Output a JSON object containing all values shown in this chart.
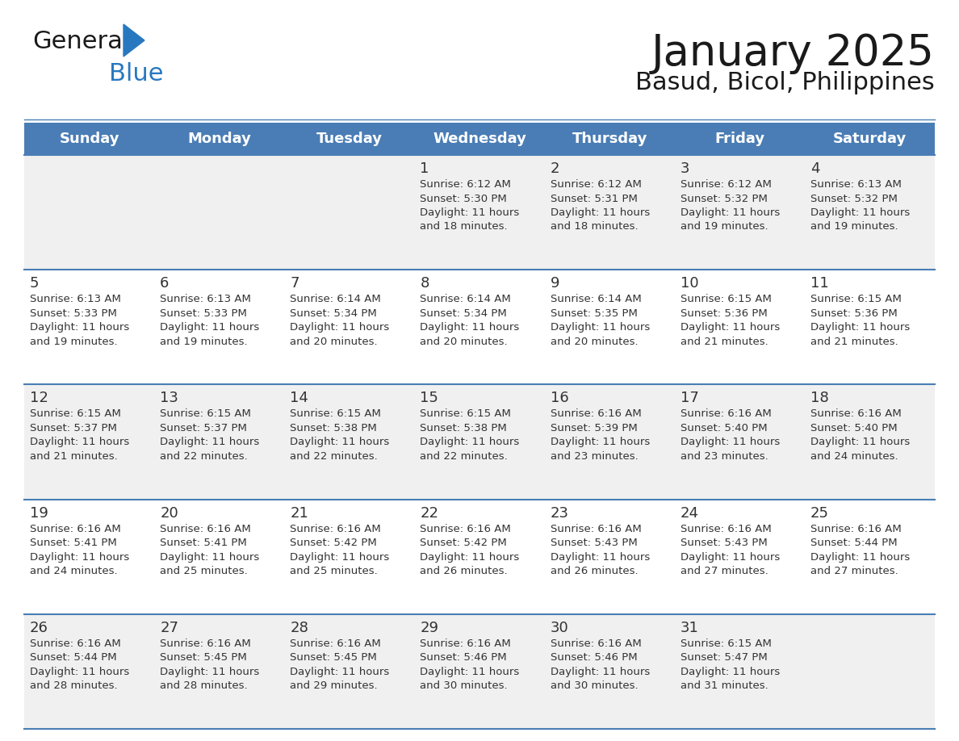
{
  "title": "January 2025",
  "subtitle": "Basud, Bicol, Philippines",
  "header_color": "#4a7db5",
  "header_text_color": "#ffffff",
  "cell_bg_odd": "#f0f0f0",
  "cell_bg_even": "#ffffff",
  "day_headers": [
    "Sunday",
    "Monday",
    "Tuesday",
    "Wednesday",
    "Thursday",
    "Friday",
    "Saturday"
  ],
  "title_color": "#1a1a1a",
  "subtitle_color": "#1a1a1a",
  "text_color": "#333333",
  "logo_general_color": "#1a1a1a",
  "logo_blue_color": "#2878c0",
  "divider_color": "#4a7db5",
  "calendar_data": [
    [
      "",
      "",
      "",
      "1\nSunrise: 6:12 AM\nSunset: 5:30 PM\nDaylight: 11 hours\nand 18 minutes.",
      "2\nSunrise: 6:12 AM\nSunset: 5:31 PM\nDaylight: 11 hours\nand 18 minutes.",
      "3\nSunrise: 6:12 AM\nSunset: 5:32 PM\nDaylight: 11 hours\nand 19 minutes.",
      "4\nSunrise: 6:13 AM\nSunset: 5:32 PM\nDaylight: 11 hours\nand 19 minutes."
    ],
    [
      "5\nSunrise: 6:13 AM\nSunset: 5:33 PM\nDaylight: 11 hours\nand 19 minutes.",
      "6\nSunrise: 6:13 AM\nSunset: 5:33 PM\nDaylight: 11 hours\nand 19 minutes.",
      "7\nSunrise: 6:14 AM\nSunset: 5:34 PM\nDaylight: 11 hours\nand 20 minutes.",
      "8\nSunrise: 6:14 AM\nSunset: 5:34 PM\nDaylight: 11 hours\nand 20 minutes.",
      "9\nSunrise: 6:14 AM\nSunset: 5:35 PM\nDaylight: 11 hours\nand 20 minutes.",
      "10\nSunrise: 6:15 AM\nSunset: 5:36 PM\nDaylight: 11 hours\nand 21 minutes.",
      "11\nSunrise: 6:15 AM\nSunset: 5:36 PM\nDaylight: 11 hours\nand 21 minutes."
    ],
    [
      "12\nSunrise: 6:15 AM\nSunset: 5:37 PM\nDaylight: 11 hours\nand 21 minutes.",
      "13\nSunrise: 6:15 AM\nSunset: 5:37 PM\nDaylight: 11 hours\nand 22 minutes.",
      "14\nSunrise: 6:15 AM\nSunset: 5:38 PM\nDaylight: 11 hours\nand 22 minutes.",
      "15\nSunrise: 6:15 AM\nSunset: 5:38 PM\nDaylight: 11 hours\nand 22 minutes.",
      "16\nSunrise: 6:16 AM\nSunset: 5:39 PM\nDaylight: 11 hours\nand 23 minutes.",
      "17\nSunrise: 6:16 AM\nSunset: 5:40 PM\nDaylight: 11 hours\nand 23 minutes.",
      "18\nSunrise: 6:16 AM\nSunset: 5:40 PM\nDaylight: 11 hours\nand 24 minutes."
    ],
    [
      "19\nSunrise: 6:16 AM\nSunset: 5:41 PM\nDaylight: 11 hours\nand 24 minutes.",
      "20\nSunrise: 6:16 AM\nSunset: 5:41 PM\nDaylight: 11 hours\nand 25 minutes.",
      "21\nSunrise: 6:16 AM\nSunset: 5:42 PM\nDaylight: 11 hours\nand 25 minutes.",
      "22\nSunrise: 6:16 AM\nSunset: 5:42 PM\nDaylight: 11 hours\nand 26 minutes.",
      "23\nSunrise: 6:16 AM\nSunset: 5:43 PM\nDaylight: 11 hours\nand 26 minutes.",
      "24\nSunrise: 6:16 AM\nSunset: 5:43 PM\nDaylight: 11 hours\nand 27 minutes.",
      "25\nSunrise: 6:16 AM\nSunset: 5:44 PM\nDaylight: 11 hours\nand 27 minutes."
    ],
    [
      "26\nSunrise: 6:16 AM\nSunset: 5:44 PM\nDaylight: 11 hours\nand 28 minutes.",
      "27\nSunrise: 6:16 AM\nSunset: 5:45 PM\nDaylight: 11 hours\nand 28 minutes.",
      "28\nSunrise: 6:16 AM\nSunset: 5:45 PM\nDaylight: 11 hours\nand 29 minutes.",
      "29\nSunrise: 6:16 AM\nSunset: 5:46 PM\nDaylight: 11 hours\nand 30 minutes.",
      "30\nSunrise: 6:16 AM\nSunset: 5:46 PM\nDaylight: 11 hours\nand 30 minutes.",
      "31\nSunrise: 6:15 AM\nSunset: 5:47 PM\nDaylight: 11 hours\nand 31 minutes.",
      ""
    ]
  ],
  "fig_width": 11.88,
  "fig_height": 9.18,
  "dpi": 100
}
